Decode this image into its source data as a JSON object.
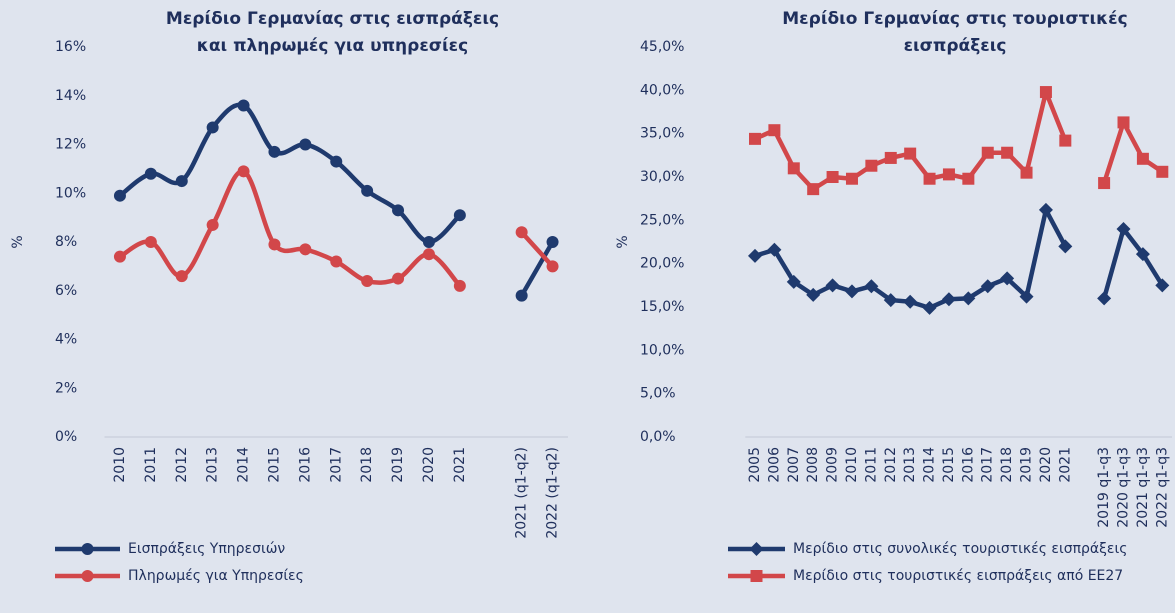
{
  "chart_data": [
    {
      "type": "line",
      "title": "Μερίδιο Γερμανίας στις εισπράξεις και πληρωμές για υπηρεσίες",
      "y_label": "%",
      "smooth": true,
      "grid": false,
      "legend": "bottom",
      "categories": [
        "2010",
        "2011",
        "2012",
        "2013",
        "2014",
        "2015",
        "2016",
        "2017",
        "2018",
        "2019",
        "2020",
        "2021",
        null,
        "2021 (q1-q2)",
        "2022 (q1-q2)"
      ],
      "ylim": [
        0,
        16
      ],
      "yticks": [
        {
          "value": 0,
          "label": "0%"
        },
        {
          "value": 2,
          "label": "2%"
        },
        {
          "value": 4,
          "label": "4%"
        },
        {
          "value": 6,
          "label": "6%"
        },
        {
          "value": 8,
          "label": "8%"
        },
        {
          "value": 10,
          "label": "10%"
        },
        {
          "value": 12,
          "label": "12%"
        },
        {
          "value": 14,
          "label": "14%"
        },
        {
          "value": 16,
          "label": "16%"
        }
      ],
      "series": [
        {
          "name": "Εισπράξεις Υπηρεσιών",
          "color": "#1f3a6e",
          "marker": "circle",
          "values": [
            9.9,
            10.8,
            10.5,
            12.7,
            13.6,
            11.7,
            12.0,
            11.3,
            10.1,
            9.3,
            8.0,
            9.1,
            null,
            5.8,
            8.0
          ]
        },
        {
          "name": "Πληρωμές για Υπηρεσίες",
          "color": "#d2474a",
          "marker": "circle",
          "values": [
            7.4,
            8.0,
            6.6,
            8.7,
            10.9,
            7.9,
            7.7,
            7.2,
            6.4,
            6.5,
            7.5,
            6.2,
            null,
            8.4,
            7.0
          ]
        }
      ]
    },
    {
      "type": "line",
      "title": "Μερίδιο Γερμανίας στις τουριστικές εισπράξεις",
      "y_label": "%",
      "smooth": false,
      "grid": false,
      "legend": "bottom",
      "categories": [
        "2005",
        "2006",
        "2007",
        "2008",
        "2009",
        "2010",
        "2011",
        "2012",
        "2013",
        "2014",
        "2015",
        "2016",
        "2017",
        "2018",
        "2019",
        "2020",
        "2021",
        null,
        "2019 q1-q3",
        "2020 q1-q3",
        "2021 q1-q3",
        "2022 q1-q3"
      ],
      "ylim": [
        0,
        45
      ],
      "yticks": [
        {
          "value": 0,
          "label": "0,0%"
        },
        {
          "value": 5,
          "label": "5,0%"
        },
        {
          "value": 10,
          "label": "10,0%"
        },
        {
          "value": 15,
          "label": "15,0%"
        },
        {
          "value": 20,
          "label": "20,0%"
        },
        {
          "value": 25,
          "label": "25,0%"
        },
        {
          "value": 30,
          "label": "30,0%"
        },
        {
          "value": 35,
          "label": "35,0%"
        },
        {
          "value": 40,
          "label": "40,0%"
        },
        {
          "value": 45,
          "label": "45,0%"
        }
      ],
      "series": [
        {
          "name": "Μερίδιο στις συνολικές τουριστικές εισπράξεις",
          "color": "#1f3a6e",
          "marker": "diamond",
          "values": [
            20.9,
            21.6,
            17.9,
            16.4,
            17.5,
            16.8,
            17.4,
            15.8,
            15.6,
            14.9,
            15.9,
            16.0,
            17.4,
            18.3,
            16.2,
            26.2,
            22.0,
            null,
            16.0,
            24.0,
            21.1,
            17.5
          ]
        },
        {
          "name": "Μερίδιο στις τουριστικές εισπράξεις από ΕΕ27",
          "color": "#d2474a",
          "marker": "square",
          "values": [
            34.4,
            35.4,
            31.0,
            28.6,
            30.0,
            29.8,
            31.3,
            32.2,
            32.7,
            29.8,
            30.3,
            29.8,
            32.8,
            32.8,
            30.5,
            39.8,
            34.2,
            null,
            29.3,
            36.3,
            32.1,
            30.6
          ]
        }
      ]
    }
  ]
}
